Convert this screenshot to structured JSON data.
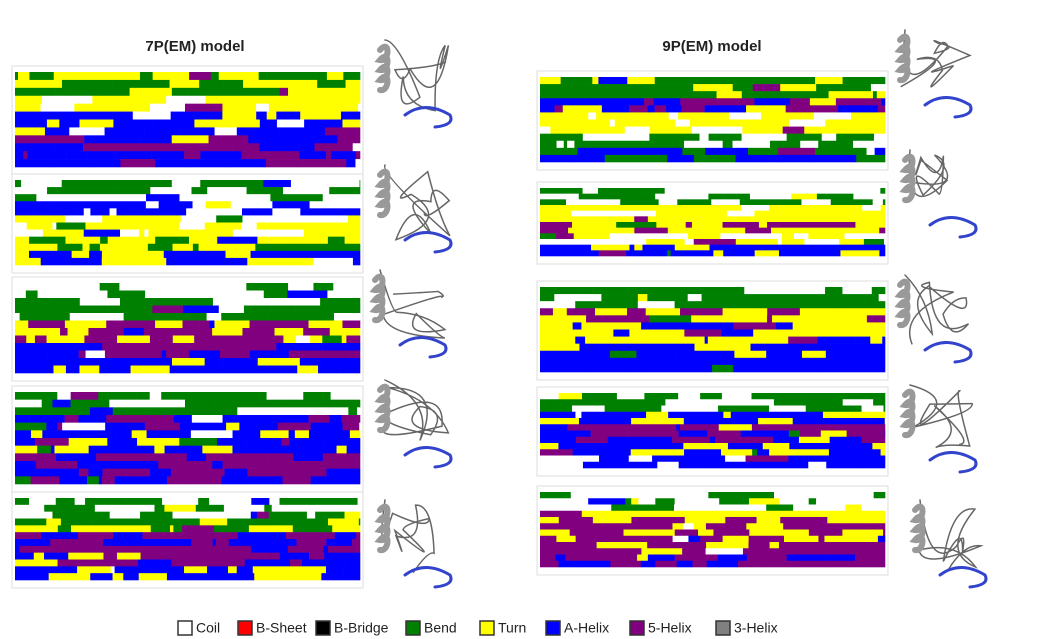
{
  "panels": [
    {
      "title": "7P(EM) model"
    },
    {
      "title": "9P(EM) model"
    }
  ],
  "legend": [
    {
      "label": "Coil",
      "color": "#ffffff"
    },
    {
      "label": "B-Sheet",
      "color": "#ff0000"
    },
    {
      "label": "B-Bridge",
      "color": "#000000"
    },
    {
      "label": "Bend",
      "color": "#008000"
    },
    {
      "label": "Turn",
      "color": "#ffff00"
    },
    {
      "label": "A-Helix",
      "color": "#0000ff"
    },
    {
      "label": "5-Helix",
      "color": "#800080"
    },
    {
      "label": "3-Helix",
      "color": "#808080"
    }
  ]
}
